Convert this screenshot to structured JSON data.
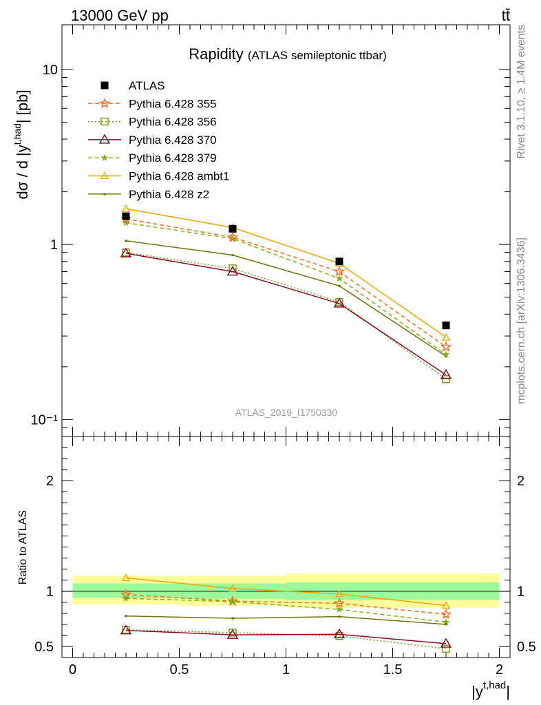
{
  "header": {
    "energy_label": "13000 GeV pp",
    "process_label": "tt̄"
  },
  "side_labels": {
    "rivet": "Rivet 3.1.10, ≥ 1.4M events",
    "mcplots": "mcplots.cern.ch [arXiv:1306.3436]"
  },
  "colors": {
    "atlas": "#000000",
    "p355": "#ff6a1a",
    "p356": "#6e9a0a",
    "p370": "#8b0a23",
    "p379": "#7cb310",
    "ambt1": "#f5a300",
    "z2": "#75700a",
    "band_inner": "#9cfa9c",
    "band_outer": "#fdfd9c"
  },
  "chart_data": [
    {
      "type": "line",
      "title": "Rapidity",
      "subtitle": "(ATLAS semileptonic ttbar)",
      "analysis_id": "ATLAS_2019_I1750330",
      "xlabel": "|y^{t,had}|",
      "ylabel": "dσ / d |y^{t,had}| [pb]",
      "yscale": "log",
      "xlim": [
        -0.05,
        2.05
      ],
      "ylim": [
        0.08,
        18
      ],
      "y_ticks": [
        {
          "value": 0.1,
          "label": "10⁻¹"
        },
        {
          "value": 1,
          "label": "1"
        },
        {
          "value": 10,
          "label": "10"
        }
      ],
      "x": [
        0.25,
        0.75,
        1.25,
        1.75
      ],
      "series": [
        {
          "name": "ATLAS",
          "style": "square",
          "values": [
            1.45,
            1.23,
            0.8,
            0.345
          ]
        },
        {
          "name": "Pythia 6.428 355",
          "style": "star-dashed",
          "values": [
            1.4,
            1.1,
            0.7,
            0.26
          ]
        },
        {
          "name": "Pythia 6.428 356",
          "style": "square-dotted",
          "values": [
            0.9,
            0.73,
            0.47,
            0.17
          ]
        },
        {
          "name": "Pythia 6.428 370",
          "style": "triangle-solid",
          "values": [
            0.89,
            0.7,
            0.46,
            0.18
          ]
        },
        {
          "name": "Pythia 6.428 379",
          "style": "star-dashed",
          "values": [
            1.33,
            1.08,
            0.64,
            0.235
          ]
        },
        {
          "name": "Pythia 6.428 ambt1",
          "style": "triangle-solid",
          "values": [
            1.6,
            1.25,
            0.78,
            0.295
          ]
        },
        {
          "name": "Pythia 6.428 z2",
          "style": "dot-solid",
          "values": [
            1.05,
            0.87,
            0.58,
            0.23
          ]
        }
      ]
    },
    {
      "type": "line",
      "ylabel": "Ratio to ATLAS",
      "xlabel": "|y^{t,had}|",
      "xlim": [
        -0.05,
        2.05
      ],
      "ylim": [
        0.4,
        2.4
      ],
      "y_ticks": [
        {
          "value": 0.5,
          "label": "0.5"
        },
        {
          "value": 1,
          "label": "1"
        },
        {
          "value": 2,
          "label": "2"
        }
      ],
      "x_ticks": [
        {
          "value": 0,
          "label": "0"
        },
        {
          "value": 0.5,
          "label": "0.5"
        },
        {
          "value": 1,
          "label": "1"
        },
        {
          "value": 1.5,
          "label": "1.5"
        },
        {
          "value": 2,
          "label": "2"
        }
      ],
      "bins": [
        {
          "lo": 0,
          "hi": 0.5,
          "inner": [
            0.94,
            1.07
          ],
          "outer": [
            0.88,
            1.14
          ]
        },
        {
          "lo": 0.5,
          "hi": 1.0,
          "inner": [
            0.93,
            1.07
          ],
          "outer": [
            0.87,
            1.14
          ]
        },
        {
          "lo": 1.0,
          "hi": 2.0,
          "inner": [
            0.92,
            1.08
          ],
          "outer": [
            0.85,
            1.16
          ]
        }
      ],
      "x": [
        0.25,
        0.75,
        1.25,
        1.75
      ],
      "series": [
        {
          "name": "Pythia 6.428 355",
          "values": [
            0.97,
            0.91,
            0.89,
            0.79
          ]
        },
        {
          "name": "Pythia 6.428 356",
          "values": [
            0.65,
            0.625,
            0.595,
            0.48
          ]
        },
        {
          "name": "Pythia 6.428 370",
          "values": [
            0.645,
            0.605,
            0.61,
            0.525
          ]
        },
        {
          "name": "Pythia 6.428 379",
          "values": [
            0.935,
            0.905,
            0.835,
            0.72
          ]
        },
        {
          "name": "Pythia 6.428 ambt1",
          "values": [
            1.12,
            1.025,
            0.975,
            0.87
          ]
        },
        {
          "name": "Pythia 6.428 z2",
          "values": [
            0.775,
            0.755,
            0.77,
            0.7
          ]
        }
      ]
    }
  ]
}
